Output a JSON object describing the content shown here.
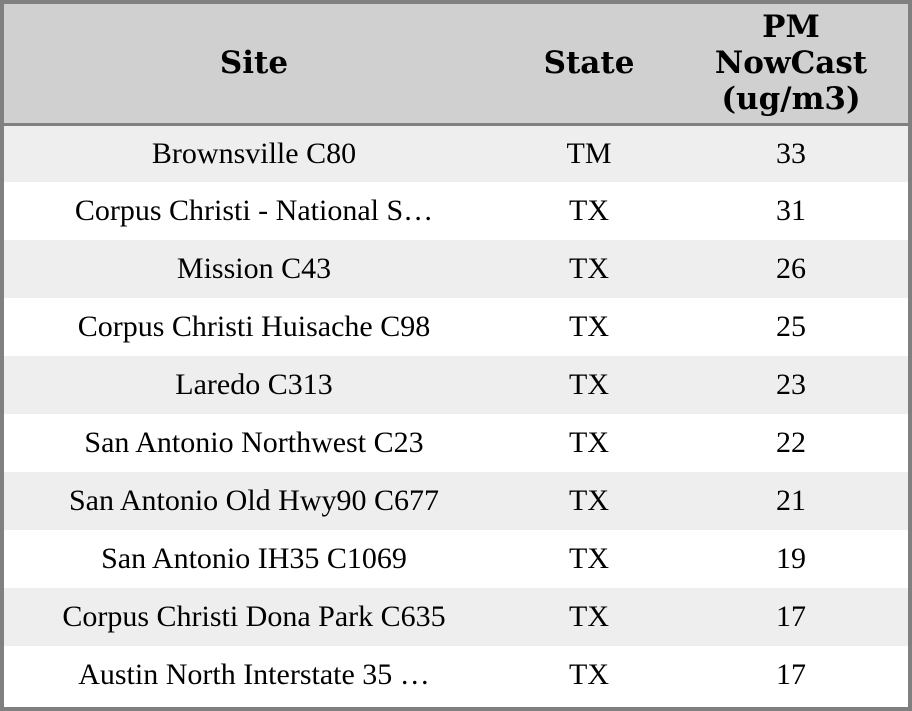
{
  "table": {
    "columns": [
      {
        "label": "Site"
      },
      {
        "label": "State"
      },
      {
        "label": "PM NowCast (ug/m3)"
      }
    ],
    "rows": [
      {
        "site": "Brownsville C80",
        "state": "TM",
        "pm": "33"
      },
      {
        "site": "Corpus Christi - National S…",
        "state": "TX",
        "pm": "31"
      },
      {
        "site": "Mission C43",
        "state": "TX",
        "pm": "26"
      },
      {
        "site": "Corpus Christi Huisache C98",
        "state": "TX",
        "pm": "25"
      },
      {
        "site": "Laredo C313",
        "state": "TX",
        "pm": "23"
      },
      {
        "site": "San Antonio Northwest C23",
        "state": "TX",
        "pm": "22"
      },
      {
        "site": "San Antonio Old Hwy90 C677",
        "state": "TX",
        "pm": "21"
      },
      {
        "site": "San Antonio IH35 C1069",
        "state": "TX",
        "pm": "19"
      },
      {
        "site": "Corpus Christi Dona Park C635",
        "state": "TX",
        "pm": "17"
      },
      {
        "site": "Austin North Interstate 35 …",
        "state": "TX",
        "pm": "17"
      }
    ]
  },
  "colors": {
    "header_bg": "#d0d0d0",
    "row_alt_bg": "#eeeeee",
    "row_bg": "#ffffff",
    "border": "#808080",
    "text": "#000000"
  },
  "chart_data": {
    "type": "table",
    "title": "",
    "columns": [
      "Site",
      "State",
      "PM NowCast (ug/m3)"
    ],
    "rows": [
      [
        "Brownsville C80",
        "TM",
        33
      ],
      [
        "Corpus Christi - National S…",
        "TX",
        31
      ],
      [
        "Mission C43",
        "TX",
        26
      ],
      [
        "Corpus Christi Huisache C98",
        "TX",
        25
      ],
      [
        "Laredo C313",
        "TX",
        23
      ],
      [
        "San Antonio Northwest C23",
        "TX",
        22
      ],
      [
        "San Antonio Old Hwy90 C677",
        "TX",
        21
      ],
      [
        "San Antonio IH35 C1069",
        "TX",
        19
      ],
      [
        "Corpus Christi Dona Park C635",
        "TX",
        17
      ],
      [
        "Austin North Interstate 35 …",
        "TX",
        17
      ]
    ],
    "layout": {
      "zebra_striping": true,
      "header_position": "top",
      "value_unit": "ug/m3"
    }
  }
}
